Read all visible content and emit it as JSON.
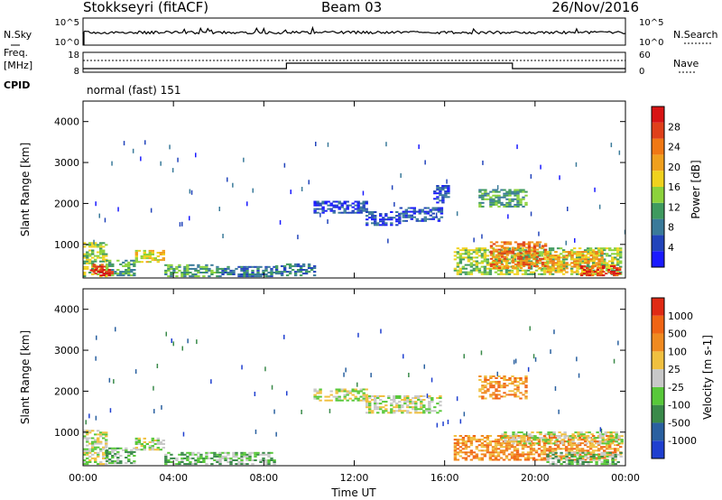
{
  "header": {
    "station": "Stokkseyri (fitACF)",
    "beam": "Beam 03",
    "date": "26/Nov/2016"
  },
  "noise_panel": {
    "left_label": "N.Sky",
    "left_ticks": [
      "10^5",
      "10^0"
    ],
    "right_ticks": [
      "10^5",
      "10^0"
    ],
    "right_label": "N.Search"
  },
  "freq_panel": {
    "left_label_top": "Freq.",
    "left_label_unit": "[MHz]",
    "left_ticks": [
      "18",
      "8"
    ],
    "right_ticks": [
      "60",
      "0"
    ],
    "right_label": "Nave",
    "cpid_label": "CPID",
    "cpid_value": "normal (fast) 151",
    "step_changes_hours": [
      9.0,
      19.0
    ]
  },
  "chart_data": [
    {
      "type": "heatmap",
      "name": "power",
      "ylabel": "Slant Range [km]",
      "xlabel": "",
      "ylim": [
        180,
        4500
      ],
      "yticks": [
        "1000",
        "2000",
        "3000",
        "4000"
      ],
      "xlim_hours": [
        0,
        24
      ],
      "colorbar": {
        "label": "Power [dB]",
        "ticks": [
          "4",
          "8",
          "12",
          "16",
          "20",
          "24",
          "28"
        ],
        "colors": [
          "#1a1aff",
          "#2244bb",
          "#3a7a9a",
          "#3f9a5f",
          "#8cd23c",
          "#f0d21e",
          "#f0a01e",
          "#f07814",
          "#e0401a",
          "#d81414"
        ]
      },
      "regions": [
        {
          "t0": 0.0,
          "t1": 1.0,
          "r0": 200,
          "r1": 1050,
          "c": 4
        },
        {
          "t0": 0.3,
          "t1": 1.0,
          "r0": 300,
          "r1": 500,
          "c": 8
        },
        {
          "t0": 1.0,
          "t1": 2.3,
          "r0": 220,
          "r1": 600,
          "c": 3
        },
        {
          "t0": 2.3,
          "t1": 3.6,
          "r0": 550,
          "r1": 850,
          "c": 5
        },
        {
          "t0": 3.6,
          "t1": 6.0,
          "r0": 200,
          "r1": 500,
          "c": 3
        },
        {
          "t0": 6.0,
          "t1": 8.5,
          "r0": 200,
          "r1": 450,
          "c": 2
        },
        {
          "t0": 8.5,
          "t1": 10.2,
          "r0": 220,
          "r1": 500,
          "c": 2
        },
        {
          "t0": 10.2,
          "t1": 12.5,
          "r0": 1750,
          "r1": 2050,
          "c": 1
        },
        {
          "t0": 12.5,
          "t1": 14.0,
          "r0": 1450,
          "r1": 1800,
          "c": 1
        },
        {
          "t0": 14.0,
          "t1": 15.8,
          "r0": 1550,
          "r1": 1900,
          "c": 1
        },
        {
          "t0": 15.5,
          "t1": 16.2,
          "r0": 2000,
          "r1": 2450,
          "c": 1
        },
        {
          "t0": 17.5,
          "t1": 19.6,
          "r0": 1900,
          "r1": 2350,
          "c": 3
        },
        {
          "t0": 16.4,
          "t1": 23.8,
          "r0": 250,
          "r1": 900,
          "c": 4
        },
        {
          "t0": 18.0,
          "t1": 20.5,
          "r0": 400,
          "r1": 1050,
          "c": 7
        },
        {
          "t0": 20.5,
          "t1": 23.0,
          "r0": 300,
          "r1": 800,
          "c": 6
        },
        {
          "t0": 0.5,
          "t1": 1.3,
          "r0": 220,
          "r1": 380,
          "c": 9
        },
        {
          "t0": 22.0,
          "t1": 23.8,
          "r0": 220,
          "r1": 450,
          "c": 8
        }
      ]
    },
    {
      "type": "heatmap",
      "name": "velocity",
      "ylabel": "Slant Range [km]",
      "xlabel": "Time UT",
      "ylim": [
        180,
        4500
      ],
      "yticks": [
        "1000",
        "2000",
        "3000",
        "4000"
      ],
      "xticks": [
        "00:00",
        "04:00",
        "08:00",
        "12:00",
        "16:00",
        "20:00",
        "00:00"
      ],
      "xlim_hours": [
        0,
        24
      ],
      "colorbar": {
        "label": "Velocity [m s-1]",
        "ticks": [
          "1000",
          "500",
          "100",
          "25",
          "-25",
          "-100",
          "-500",
          "-1000"
        ],
        "colors": [
          "#1f3fd0",
          "#2a60a0",
          "#3a8a4a",
          "#58c83a",
          "#c8c8c8",
          "#f0c040",
          "#f08a20",
          "#f06414",
          "#e02a14"
        ]
      },
      "regions": [
        {
          "t0": 0.0,
          "t1": 1.0,
          "r0": 200,
          "r1": 1050,
          "c": 4
        },
        {
          "t0": 1.0,
          "t1": 2.3,
          "r0": 220,
          "r1": 600,
          "c": 3
        },
        {
          "t0": 2.3,
          "t1": 3.6,
          "r0": 550,
          "r1": 850,
          "c": 4
        },
        {
          "t0": 3.6,
          "t1": 8.5,
          "r0": 200,
          "r1": 480,
          "c": 3
        },
        {
          "t0": 10.2,
          "t1": 12.5,
          "r0": 1750,
          "r1": 2050,
          "c": 4
        },
        {
          "t0": 12.5,
          "t1": 15.8,
          "r0": 1450,
          "r1": 1900,
          "c": 4
        },
        {
          "t0": 17.5,
          "t1": 19.6,
          "r0": 1800,
          "r1": 2350,
          "c": 6
        },
        {
          "t0": 16.4,
          "t1": 23.8,
          "r0": 300,
          "r1": 900,
          "c": 6
        },
        {
          "t0": 18.5,
          "t1": 23.8,
          "r0": 700,
          "r1": 1000,
          "c": 4
        },
        {
          "t0": 20.5,
          "t1": 23.8,
          "r0": 200,
          "r1": 500,
          "c": 3
        }
      ]
    }
  ]
}
